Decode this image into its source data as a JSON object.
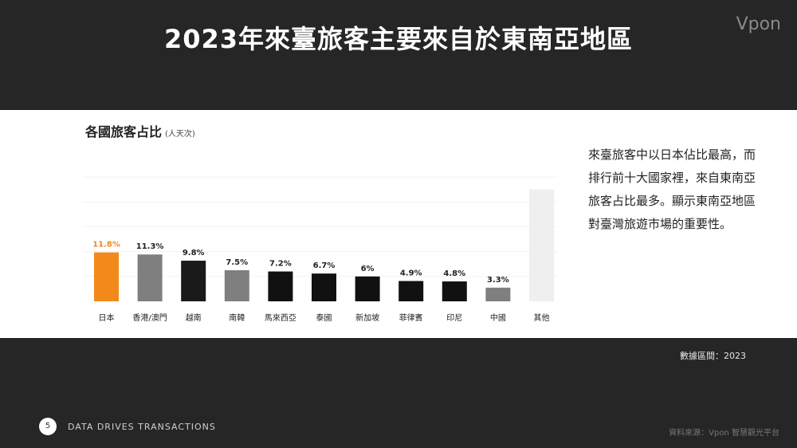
{
  "slide": {
    "title": "2023年來臺旅客主要來自於東南亞地區",
    "brand": "Vpon",
    "page_number": "5",
    "tagline": "DATA DRIVES TRANSACTIONS",
    "source": "資料來源：Vpon 智慧觀光平台",
    "period": "數據區間：2023"
  },
  "note": {
    "text": "來臺旅客中以日本佔比最高，而排行前十大國家裡，來自東南亞旅客占比最多。顯示東南亞地區對臺灣旅遊市場的重要性。"
  },
  "chart_data": {
    "type": "bar",
    "title": "各國旅客占比",
    "unit": "(人天次)",
    "categories": [
      "日本",
      "香港/澳門",
      "越南",
      "南韓",
      "馬來西亞",
      "泰國",
      "新加坡",
      "菲律賓",
      "印尼",
      "中國",
      "其他"
    ],
    "values": [
      11.8,
      11.3,
      9.8,
      7.5,
      7.2,
      6.7,
      6,
      4.9,
      4.8,
      3.3,
      27.0
    ],
    "value_labels": [
      "11.8%",
      "11.3%",
      "9.8%",
      "7.5%",
      "7.2%",
      "6.7%",
      "6%",
      "4.9%",
      "4.8%",
      "3.3%",
      ""
    ],
    "colors": [
      "#F28A1B",
      "#7F7F7F",
      "#1A1A1A",
      "#7F7F7F",
      "#111111",
      "#111111",
      "#111111",
      "#111111",
      "#111111",
      "#7F7F7F",
      "#EFEFEF"
    ],
    "label_colors": [
      "#F28A1B",
      "#222222",
      "#222222",
      "#222222",
      "#222222",
      "#222222",
      "#222222",
      "#222222",
      "#222222",
      "#222222",
      "#222222"
    ],
    "ylim": [
      0,
      30
    ],
    "grid": true
  }
}
